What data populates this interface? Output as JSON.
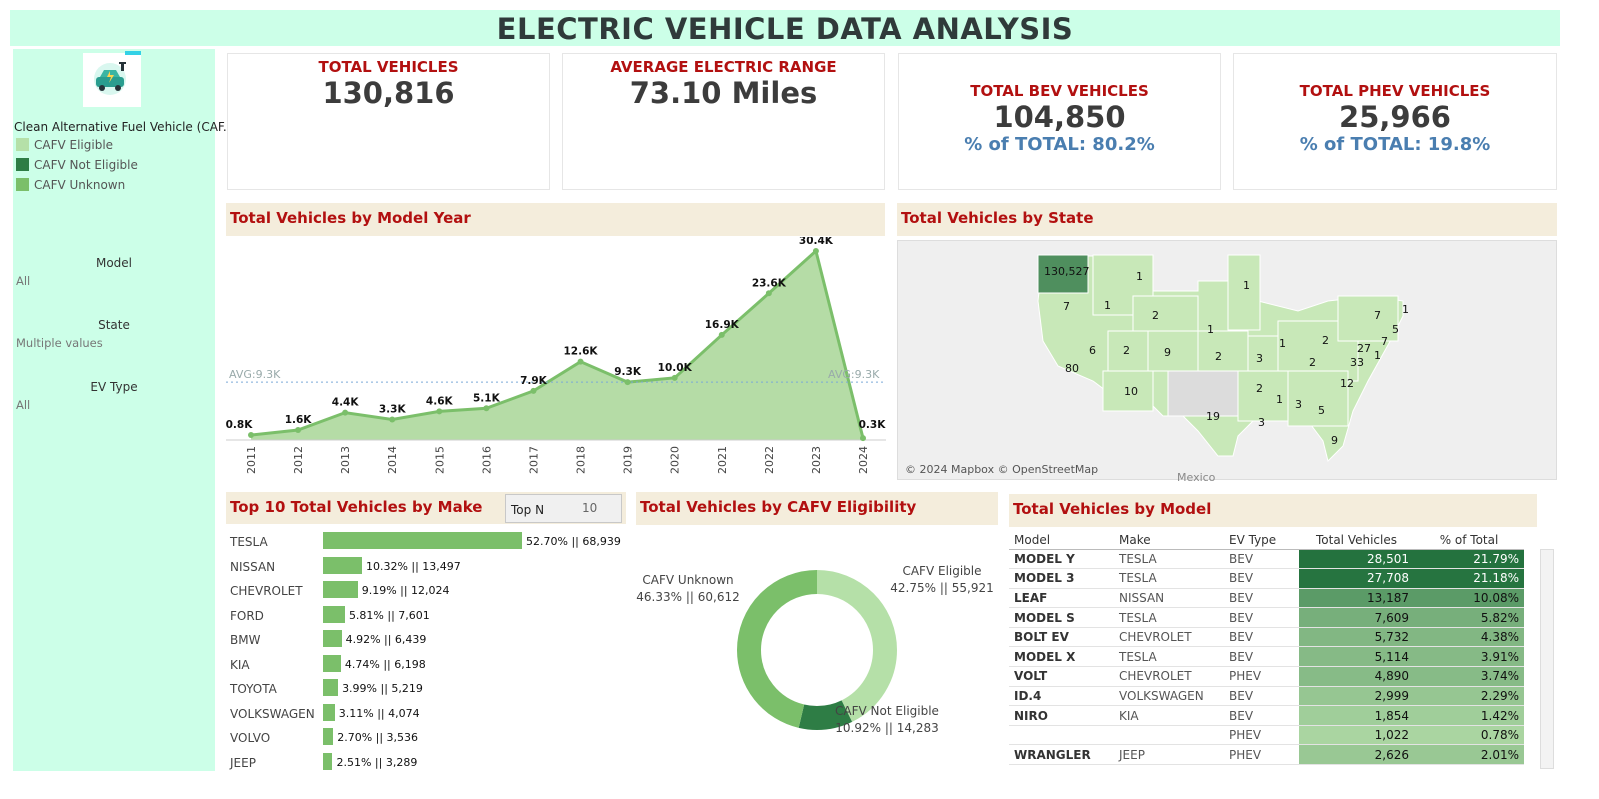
{
  "title": "ELECTRIC VEHICLE DATA ANALYSIS",
  "sidebar": {
    "legend_title": "Clean Alternative Fuel Vehicle (CAF..",
    "legend": [
      {
        "label": "CAFV Eligible",
        "color": "#b5e0a8"
      },
      {
        "label": "CAFV Not Eligible",
        "color": "#2e7d45"
      },
      {
        "label": "CAFV Unknown",
        "color": "#7bbf6a"
      }
    ],
    "filters": [
      {
        "label": "Model",
        "value": "All"
      },
      {
        "label": "State",
        "value": "Multiple values"
      },
      {
        "label": "EV Type",
        "value": "All"
      }
    ]
  },
  "kpis": {
    "total": {
      "label": "TOTAL VEHICLES",
      "value": "130,816"
    },
    "range": {
      "label": "AVERAGE ELECTRIC RANGE",
      "value": "73.10 Miles"
    },
    "bev": {
      "label": "TOTAL BEV VEHICLES",
      "value": "104,850",
      "pct": "% of TOTAL: 80.2%"
    },
    "phev": {
      "label": "TOTAL PHEV VEHICLES",
      "value": "25,966",
      "pct": "% of TOTAL: 19.8%"
    }
  },
  "sections": {
    "model_year": "Total Vehicles by Model Year",
    "state": "Total Vehicles by State",
    "make": "Top 10 Total Vehicles by Make",
    "cafv": "Total Vehicles by CAFV Eligibility",
    "model": "Total Vehicles  by Model"
  },
  "topn": {
    "label": "Top N",
    "value": "10"
  },
  "map": {
    "attribution": "© 2024 Mapbox © OpenStreetMap",
    "labels": [
      "130,527",
      "7",
      "1",
      "1",
      "2",
      "1",
      "1",
      "7",
      "80",
      "6",
      "2",
      "9",
      "2",
      "3",
      "1",
      "2",
      "10",
      "2",
      "2",
      "33",
      "27",
      "7",
      "5",
      "1",
      "12",
      "19",
      "1",
      "3",
      "5",
      "3",
      "9",
      "1"
    ],
    "mexico": "Mexico"
  },
  "chart_data": [
    {
      "type": "area",
      "categories": [
        "2011",
        "2012",
        "2013",
        "2014",
        "2015",
        "2016",
        "2017",
        "2018",
        "2019",
        "2020",
        "2021",
        "2022",
        "2023",
        "2024"
      ],
      "values": [
        800,
        1600,
        4400,
        3300,
        4600,
        5100,
        7900,
        12600,
        9300,
        10000,
        16900,
        23600,
        30400,
        300
      ],
      "labels": [
        "0.8K",
        "1.6K",
        "4.4K",
        "3.3K",
        "4.6K",
        "5.1K",
        "7.9K",
        "12.6K",
        "9.3K",
        "10.0K",
        "16.9K",
        "23.6K",
        "30.4K",
        "0.3K"
      ],
      "reference_line": {
        "value": 9300,
        "label": "AVG:9.3K"
      },
      "ylim": [
        0,
        30400
      ],
      "color": "#7bbf6a"
    },
    {
      "type": "bar",
      "categories": [
        "TESLA",
        "NISSAN",
        "CHEVROLET",
        "FORD",
        "BMW",
        "KIA",
        "TOYOTA",
        "VOLKSWAGEN",
        "VOLVO",
        "JEEP"
      ],
      "values": [
        68939,
        13497,
        12024,
        7601,
        6439,
        6198,
        5219,
        4074,
        3536,
        3289
      ],
      "labels": [
        "52.70% || 68,939",
        "10.32% || 13,497",
        "9.19% || 12,024",
        "5.81% || 7,601",
        "4.92% || 6,439",
        "4.74% || 6,198",
        "3.99% || 5,219",
        "3.11% || 4,074",
        "2.70% || 3,536",
        "2.51% || 3,289"
      ],
      "color": "#7bbf6a"
    },
    {
      "type": "pie",
      "slices": [
        {
          "name": "CAFV Eligible",
          "value": 55921,
          "label": "42.75% || 55,921",
          "color": "#b5e0a8"
        },
        {
          "name": "CAFV Not Eligible",
          "value": 14283,
          "label": "10.92% || 14,283",
          "color": "#2e7d45"
        },
        {
          "name": "CAFV Unknown",
          "value": 60612,
          "label": "46.33% || 60,612",
          "color": "#7bbf6a"
        }
      ]
    },
    {
      "type": "table",
      "columns": [
        "Model",
        "Make",
        "EV Type",
        "Total Vehicles",
        "% of Total"
      ],
      "rows": [
        {
          "model": "MODEL Y",
          "make": "TESLA",
          "ev": "BEV",
          "total": "28,501",
          "pct": "21.79%",
          "v": 28501
        },
        {
          "model": "MODEL 3",
          "make": "TESLA",
          "ev": "BEV",
          "total": "27,708",
          "pct": "21.18%",
          "v": 27708
        },
        {
          "model": "LEAF",
          "make": "NISSAN",
          "ev": "BEV",
          "total": "13,187",
          "pct": "10.08%",
          "v": 13187
        },
        {
          "model": "MODEL S",
          "make": "TESLA",
          "ev": "BEV",
          "total": "7,609",
          "pct": "5.82%",
          "v": 7609
        },
        {
          "model": "BOLT EV",
          "make": "CHEVROLET",
          "ev": "BEV",
          "total": "5,732",
          "pct": "4.38%",
          "v": 5732
        },
        {
          "model": "MODEL X",
          "make": "TESLA",
          "ev": "BEV",
          "total": "5,114",
          "pct": "3.91%",
          "v": 5114
        },
        {
          "model": "VOLT",
          "make": "CHEVROLET",
          "ev": "PHEV",
          "total": "4,890",
          "pct": "3.74%",
          "v": 4890
        },
        {
          "model": "ID.4",
          "make": "VOLKSWAGEN",
          "ev": "BEV",
          "total": "2,999",
          "pct": "2.29%",
          "v": 2999
        },
        {
          "model": "NIRO",
          "make": "KIA",
          "ev": "BEV",
          "total": "1,854",
          "pct": "1.42%",
          "v": 1854
        },
        {
          "model": "",
          "make": "",
          "ev": "PHEV",
          "total": "1,022",
          "pct": "0.78%",
          "v": 1022
        },
        {
          "model": "WRANGLER",
          "make": "JEEP",
          "ev": "PHEV",
          "total": "2,626",
          "pct": "2.01%",
          "v": 2626
        }
      ]
    }
  ]
}
